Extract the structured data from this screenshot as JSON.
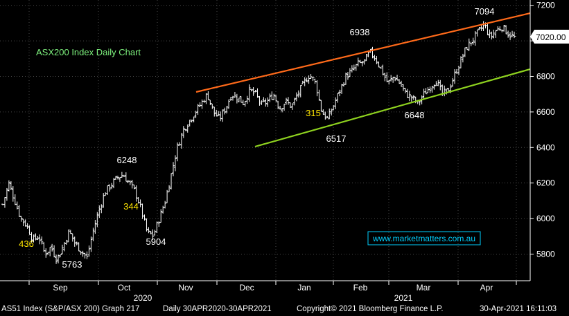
{
  "chart_data": {
    "type": "ohlc",
    "title": "ASX200 Index Daily Chart",
    "ylim": [
      5650,
      7230
    ],
    "y_ticks": [
      5800,
      6000,
      6200,
      6400,
      6600,
      6800,
      7000,
      7200
    ],
    "x_months": [
      "Sep",
      "Oct",
      "Nov",
      "Dec",
      "Jan",
      "Feb",
      "Mar",
      "Apr"
    ],
    "year_labels": [
      "2020",
      "2021"
    ],
    "last_price": "7020.00",
    "watermark": "www.marketmatters.com.au",
    "annotations": [
      {
        "text": "7094",
        "kind": "value",
        "at": 7094
      },
      {
        "text": "6938",
        "kind": "value",
        "at": 6938
      },
      {
        "text": "6248",
        "kind": "value",
        "at": 6248
      },
      {
        "text": "6517",
        "kind": "value",
        "at": 6517
      },
      {
        "text": "6648",
        "kind": "value",
        "at": 6648
      },
      {
        "text": "5904",
        "kind": "value",
        "at": 5904
      },
      {
        "text": "5763",
        "kind": "value",
        "at": 5763
      },
      {
        "text": "315",
        "kind": "count"
      },
      {
        "text": "344",
        "kind": "count"
      },
      {
        "text": "436",
        "kind": "count"
      }
    ],
    "trendlines": [
      {
        "name": "resistance",
        "color": "#ff6a1a"
      },
      {
        "name": "support",
        "color": "#8ed21f"
      }
    ],
    "price_path": [
      6080,
      6200,
      6100,
      6000,
      5960,
      5880,
      5900,
      5800,
      5840,
      5770,
      5840,
      5930,
      5860,
      5820,
      5780,
      5930,
      6050,
      6150,
      6190,
      6230,
      6248,
      6200,
      6150,
      6050,
      5920,
      5904,
      6000,
      6100,
      6250,
      6400,
      6500,
      6550,
      6600,
      6650,
      6700,
      6600,
      6560,
      6620,
      6700,
      6680,
      6650,
      6720,
      6700,
      6640,
      6660,
      6700,
      6620,
      6660,
      6630,
      6700,
      6760,
      6810,
      6760,
      6600,
      6560,
      6640,
      6720,
      6800,
      6830,
      6870,
      6880,
      6938,
      6900,
      6830,
      6760,
      6800,
      6760,
      6700,
      6680,
      6648,
      6700,
      6740,
      6780,
      6700,
      6720,
      6800,
      6880,
      6960,
      7000,
      7050,
      7094,
      7020,
      7060,
      7080,
      7040,
      7020
    ],
    "colors": {
      "background": "#000000",
      "bars": "#ffffff",
      "grid": "#4a4a4a",
      "title": "#7df07d",
      "count_labels": "#ffe600",
      "watermark": "#00d0ff"
    }
  },
  "status_bar": {
    "index": "AS51 Index (S&P/ASX 200) Graph 217",
    "range": "Daily 30APR2020-30APR2021",
    "copyright": "Copyright© 2021 Bloomberg Finance L.P.",
    "timestamp": "30-Apr-2021 16:11:03"
  }
}
